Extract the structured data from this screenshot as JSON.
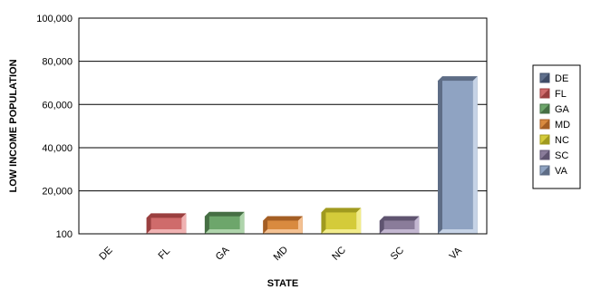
{
  "chart_data": {
    "type": "bar",
    "xlabel": "STATE",
    "ylabel": "LOW INCOME POPULATION",
    "categories": [
      "DE",
      "FL",
      "GA",
      "MD",
      "NC",
      "SC",
      "VA"
    ],
    "values": [
      100,
      7500,
      8200,
      6200,
      10000,
      6200,
      71000
    ],
    "ylim": [
      100,
      100000
    ],
    "yticks": [
      "100",
      "20,000",
      "40,000",
      "60,000",
      "80,000",
      "100,000"
    ],
    "ytick_values": [
      100,
      20000,
      40000,
      60000,
      80000,
      100000
    ],
    "grid": true,
    "legend_position": "right",
    "colors": [
      "#5f6f8c",
      "#cf6b6b",
      "#6da66b",
      "#d98a3f",
      "#d4cb3a",
      "#8a7c9a",
      "#8fa3c2"
    ],
    "dark_colors": [
      "#3f4c66",
      "#9a3f3f",
      "#466f44",
      "#a45e24",
      "#a09a1f",
      "#5f5470",
      "#5e6d86"
    ],
    "light_colors": [
      "#9aa8c2",
      "#f0b2b2",
      "#aed4ab",
      "#f4c192",
      "#f2ec8a",
      "#c3b7d1",
      "#c6d3e6"
    ]
  }
}
